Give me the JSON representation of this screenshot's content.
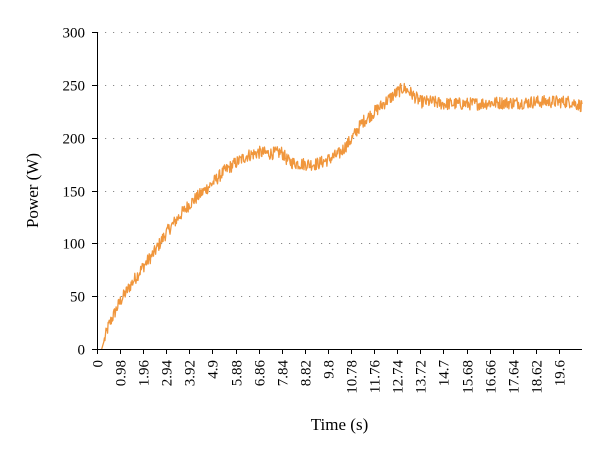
{
  "chart_data": {
    "type": "line",
    "title": "",
    "xlabel": "Time (s)",
    "ylabel": "Power (W)",
    "xlim": [
      0,
      20.58
    ],
    "ylim": [
      0,
      300
    ],
    "x_tick_values": [
      0,
      0.98,
      1.96,
      2.94,
      3.92,
      4.9,
      5.88,
      6.86,
      7.84,
      8.82,
      9.8,
      10.78,
      11.76,
      12.74,
      13.72,
      14.7,
      15.68,
      16.66,
      17.64,
      18.62,
      19.6
    ],
    "x_tick_labels": [
      "0",
      "0.98",
      "1.96",
      "2.94",
      "3.92",
      "4.9",
      "5.88",
      "6.86",
      "7.84",
      "8.82",
      "9.8",
      "10.78",
      "11.76",
      "12.74",
      "13.72",
      "14.7",
      "15.68",
      "16.66",
      "17.64",
      "18.62",
      "19.6"
    ],
    "y_tick_values": [
      0,
      50,
      100,
      150,
      200,
      250,
      300
    ],
    "y_tick_labels": [
      "0",
      "50",
      "100",
      "150",
      "200",
      "250",
      "300"
    ],
    "grid": "horizontal dotted",
    "colors": {
      "series": "#F0963C",
      "axis": "#000000",
      "grid": "#8A8A8A"
    },
    "series": [
      {
        "name": "",
        "color": "#F0963C",
        "x": [
          0.2,
          0.49,
          0.98,
          1.47,
          1.96,
          2.45,
          2.94,
          3.43,
          3.92,
          4.41,
          4.9,
          5.39,
          5.88,
          6.37,
          6.86,
          7.35,
          7.84,
          8.1,
          8.33,
          8.82,
          9.31,
          9.8,
          10.29,
          10.78,
          11.27,
          11.76,
          12.25,
          12.74,
          13.0,
          13.23,
          13.72,
          14.21,
          14.7,
          15.19,
          15.68,
          16.17,
          16.66,
          17.15,
          17.64,
          18.13,
          18.62,
          19.11,
          19.6,
          20.09,
          20.58
        ],
        "y": [
          0,
          22,
          45,
          62,
          78,
          92,
          110,
          124,
          137,
          147,
          157,
          168,
          176,
          183,
          186,
          185,
          186,
          178,
          176,
          175,
          175,
          179,
          185,
          198,
          215,
          224,
          234,
          243,
          247,
          244,
          234,
          234,
          232,
          232,
          232,
          232,
          233,
          233,
          233,
          233,
          234,
          234,
          234,
          234,
          230
        ]
      }
    ]
  }
}
